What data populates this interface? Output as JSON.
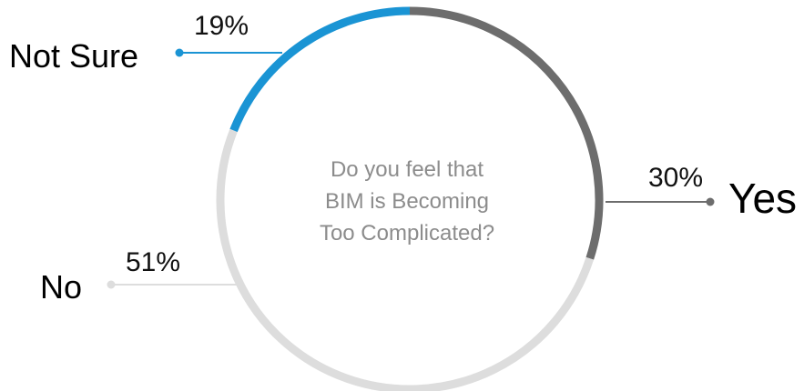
{
  "chart_data": {
    "type": "pie",
    "style": "donut-ring",
    "title": "Do you feel that BIM is Becoming Too Complicated?",
    "title_lines": [
      "Do you feel that",
      "BIM is Becoming",
      "Too Complicated?"
    ],
    "categories": [
      "Yes",
      "No",
      "Not Sure"
    ],
    "values": [
      30,
      51,
      19
    ],
    "value_labels": [
      "30%",
      "51%",
      "19%"
    ],
    "colors": [
      "#6d6d6d",
      "#dddddd",
      "#1a94d4"
    ],
    "start_angle_deg": 0,
    "direction": "clockwise"
  }
}
